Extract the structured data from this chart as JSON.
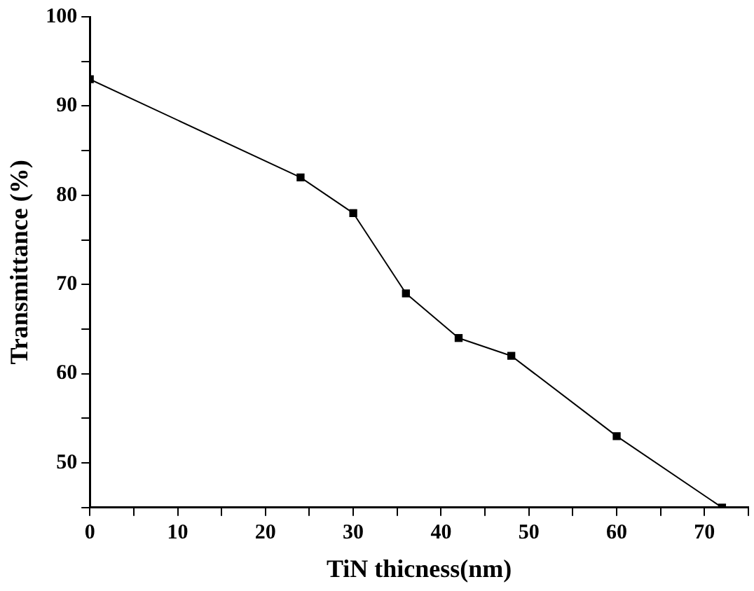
{
  "chart_data": {
    "type": "line",
    "xlabel": "TiN thicness(nm)",
    "ylabel": "Transmittance (%)",
    "x": [
      0,
      24,
      30,
      36,
      42,
      48,
      60,
      72
    ],
    "series": [
      {
        "color": "#000000",
        "values": [
          93,
          82,
          78,
          69,
          64,
          62,
          53,
          45
        ]
      }
    ],
    "xlim": [
      0,
      75
    ],
    "ylim": [
      45,
      100
    ],
    "xticks": [
      0,
      {
        "value": 5,
        "label": null
      },
      10,
      {
        "value": 15,
        "label": null
      },
      20,
      {
        "value": 25,
        "label": null
      },
      30,
      {
        "value": 35,
        "label": null
      },
      40,
      {
        "value": 45,
        "label": null
      },
      50,
      {
        "value": 55,
        "label": null
      },
      60,
      {
        "value": 65,
        "label": null
      },
      70,
      {
        "value": 75,
        "label": null
      }
    ],
    "yticks": [
      {
        "value": 45,
        "label": null
      },
      50,
      {
        "value": 55,
        "label": null
      },
      60,
      {
        "value": 65,
        "label": null
      },
      70,
      {
        "value": 75,
        "label": null
      },
      80,
      {
        "value": 85,
        "label": null
      },
      90,
      {
        "value": 95,
        "label": null
      },
      100
    ],
    "grid": false,
    "legend": false,
    "marker": "square",
    "line_style": "solid"
  }
}
